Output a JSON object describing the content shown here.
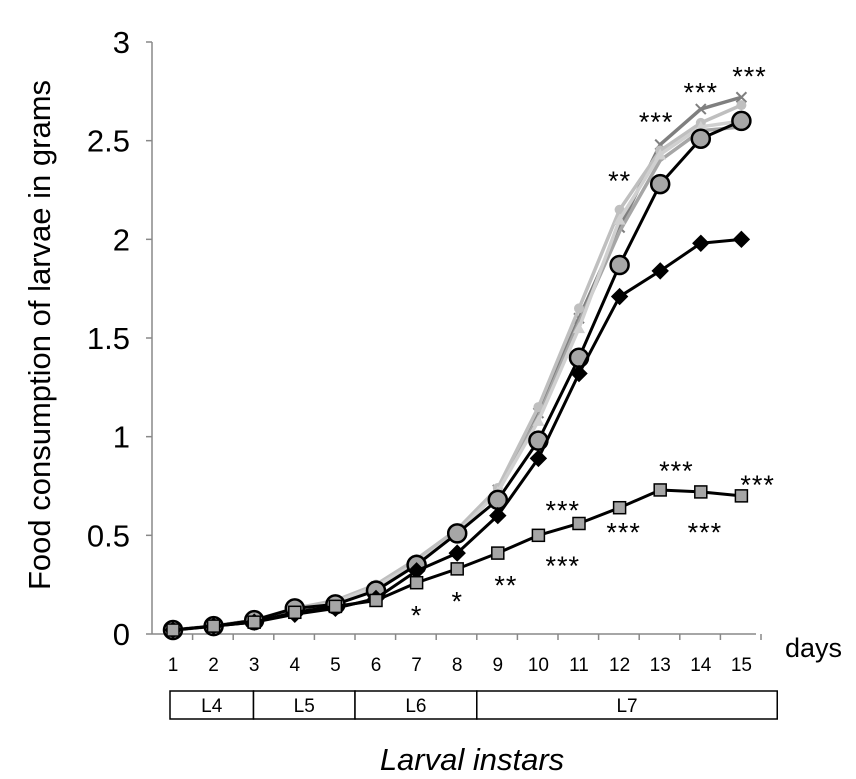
{
  "chart_data": {
    "type": "line",
    "ylabel": "Food consumption of larvae in grams",
    "xunit_label": "days",
    "xlabel": "Larval instars",
    "ylim": [
      0,
      3
    ],
    "yticks": [
      "0",
      "0.5",
      "1",
      "1.5",
      "2",
      "2.5",
      "3"
    ],
    "x": [
      1,
      2,
      3,
      4,
      5,
      6,
      7,
      8,
      9,
      10,
      11,
      12,
      13,
      14,
      15
    ],
    "xticks": [
      "1",
      "2",
      "3",
      "4",
      "5",
      "6",
      "7",
      "8",
      "9",
      "10",
      "11",
      "12",
      "13",
      "14",
      "15"
    ],
    "instars": [
      {
        "label": "L4",
        "from": 1,
        "to": 3
      },
      {
        "label": "L5",
        "from": 3,
        "to": 5.5
      },
      {
        "label": "L6",
        "from": 5.5,
        "to": 8.5
      },
      {
        "label": "L7",
        "from": 8.5,
        "to": 15.9
      }
    ],
    "series": [
      {
        "marker": "x",
        "color": "#7f7f7f",
        "values": [
          0.02,
          0.04,
          0.07,
          0.12,
          0.16,
          0.24,
          0.37,
          0.52,
          0.73,
          1.12,
          1.6,
          2.06,
          2.48,
          2.66,
          2.72
        ]
      },
      {
        "marker": "none",
        "color": "#a6a6a6",
        "values": [
          0.02,
          0.04,
          0.07,
          0.12,
          0.16,
          0.24,
          0.37,
          0.52,
          0.73,
          1.1,
          1.58,
          2.04,
          2.4,
          2.55,
          2.57
        ]
      },
      {
        "marker": "circle-small",
        "color": "#bfbfbf",
        "values": [
          0.02,
          0.04,
          0.07,
          0.13,
          0.17,
          0.25,
          0.38,
          0.53,
          0.74,
          1.15,
          1.65,
          2.15,
          2.45,
          2.59,
          2.68
        ]
      },
      {
        "marker": "triangle",
        "color": "#d0d0d0",
        "values": [
          0.02,
          0.04,
          0.07,
          0.12,
          0.16,
          0.24,
          0.36,
          0.51,
          0.72,
          1.08,
          1.55,
          2.1,
          2.43,
          2.57,
          2.6
        ]
      },
      {
        "marker": "circle",
        "color": "#000000",
        "fill": "#a6a6a6",
        "values": [
          0.02,
          0.04,
          0.07,
          0.13,
          0.15,
          0.22,
          0.35,
          0.51,
          0.68,
          0.98,
          1.4,
          1.87,
          2.28,
          2.51,
          2.6
        ]
      },
      {
        "marker": "diamond",
        "color": "#000000",
        "fill": "#000000",
        "values": [
          0.02,
          0.04,
          0.06,
          0.1,
          0.13,
          0.18,
          0.32,
          0.41,
          0.6,
          0.89,
          1.32,
          1.71,
          1.84,
          1.98,
          2.0
        ]
      },
      {
        "marker": "square",
        "color": "#000000",
        "fill": "#a6a6a6",
        "values": [
          0.02,
          0.04,
          0.06,
          0.11,
          0.14,
          0.17,
          0.26,
          0.33,
          0.41,
          0.5,
          0.56,
          0.64,
          0.73,
          0.72,
          0.7
        ]
      }
    ],
    "annotations": [
      {
        "text": "*",
        "x": 7,
        "y": 0.1
      },
      {
        "text": "*",
        "x": 8,
        "y": 0.17
      },
      {
        "text": "**",
        "x": 9.2,
        "y": 0.25
      },
      {
        "text": "***",
        "x": 10.6,
        "y": 0.63
      },
      {
        "text": "***",
        "x": 10.6,
        "y": 0.35
      },
      {
        "text": "***",
        "x": 12.1,
        "y": 0.52
      },
      {
        "text": "***",
        "x": 13.4,
        "y": 0.83
      },
      {
        "text": "***",
        "x": 14.1,
        "y": 0.52
      },
      {
        "text": "***",
        "x": 15.4,
        "y": 0.76
      },
      {
        "text": "**",
        "x": 12.0,
        "y": 2.3
      },
      {
        "text": "***",
        "x": 12.9,
        "y": 2.6
      },
      {
        "text": "***",
        "x": 14.0,
        "y": 2.75
      },
      {
        "text": "***",
        "x": 15.2,
        "y": 2.83
      }
    ]
  }
}
